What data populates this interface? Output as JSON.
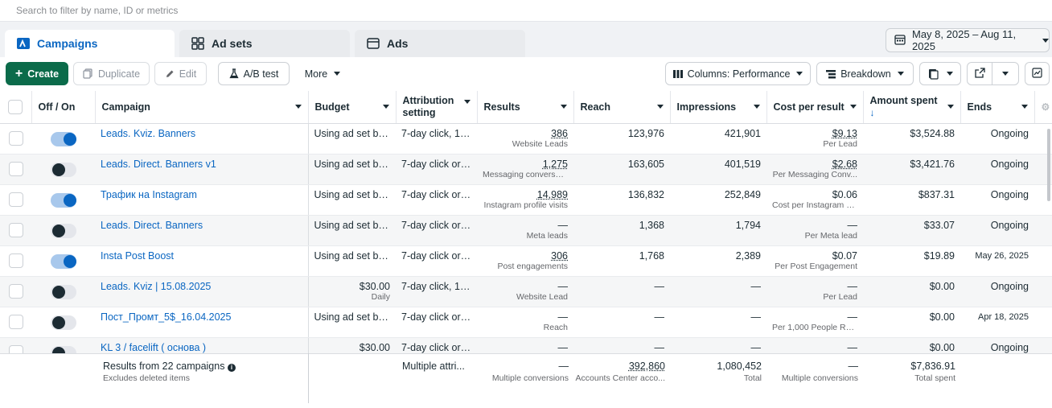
{
  "search": {
    "placeholder": "Search to filter by name, ID or metrics"
  },
  "tabs": [
    {
      "label": "Campaigns",
      "active": true
    },
    {
      "label": "Ad sets",
      "active": false
    },
    {
      "label": "Ads",
      "active": false
    }
  ],
  "date_range": "May 8, 2025 – Aug 11, 2025",
  "toolbar": {
    "create": "Create",
    "duplicate": "Duplicate",
    "edit": "Edit",
    "ab_test": "A/B test",
    "more": "More",
    "columns": "Columns: Performance",
    "breakdown": "Breakdown"
  },
  "headers": {
    "off_on": "Off / On",
    "campaign": "Campaign",
    "budget": "Budget",
    "attribution": "Attribution setting",
    "results": "Results",
    "reach": "Reach",
    "impressions": "Impressions",
    "cost_per_result": "Cost per result",
    "amount_spent": "Amount spent",
    "ends": "Ends"
  },
  "rows": [
    {
      "on": true,
      "name": "Leads. Kviz. Banners",
      "budget": "Using ad set bu...",
      "budget_sub": "",
      "attribution": "7-day click, 1-...",
      "results": "386",
      "results_sub": "Website Leads",
      "reach": "123,976",
      "impressions": "421,901",
      "cpr": "$9.13",
      "cpr_sub": "Per Lead",
      "spent": "$3,524.88",
      "ends": "Ongoing"
    },
    {
      "on": false,
      "name": "Leads. Direct. Banners v1",
      "budget": "Using ad set bu...",
      "budget_sub": "",
      "attribution": "7-day click or ...",
      "results": "1,275",
      "results_sub": "Messaging conversat...",
      "reach": "163,605",
      "impressions": "401,519",
      "cpr": "$2.68",
      "cpr_sub": "Per Messaging Conv...",
      "spent": "$3,421.76",
      "ends": "Ongoing"
    },
    {
      "on": true,
      "name": "Трафик на Instagram",
      "budget": "Using ad set bu...",
      "budget_sub": "",
      "attribution": "7-day click or ...",
      "results": "14,989",
      "results_sub": "Instagram profile visits",
      "reach": "136,832",
      "impressions": "252,849",
      "cpr": "$0.06",
      "cpr_sub": "Cost per Instagram pr...",
      "spent": "$837.31",
      "ends": "Ongoing"
    },
    {
      "on": false,
      "name": "Leads. Direct. Banners",
      "budget": "Using ad set bu...",
      "budget_sub": "",
      "attribution": "7-day click or ...",
      "results": "—",
      "results_sub": "Meta leads",
      "reach": "1,368",
      "impressions": "1,794",
      "cpr": "—",
      "cpr_sub": "Per Meta lead",
      "spent": "$33.07",
      "ends": "Ongoing"
    },
    {
      "on": true,
      "name": "Insta Post Boost",
      "budget": "Using ad set bu...",
      "budget_sub": "",
      "attribution": "7-day click or ...",
      "results": "306",
      "results_sub": "Post engagements",
      "reach": "1,768",
      "impressions": "2,389",
      "cpr": "$0.07",
      "cpr_sub": "Per Post Engagement",
      "spent": "$19.89",
      "ends": "May 26, 2025"
    },
    {
      "on": false,
      "name": "Leads. Kviz | 15.08.2025",
      "budget": "$30.00",
      "budget_sub": "Daily",
      "attribution": "7-day click, 1-...",
      "results": "—",
      "results_sub": "Website Lead",
      "reach": "—",
      "impressions": "—",
      "cpr": "—",
      "cpr_sub": "Per Lead",
      "spent": "$0.00",
      "ends": "Ongoing"
    },
    {
      "on": false,
      "name": "Пост_Промт_5$_16.04.2025",
      "budget": "Using ad set bu...",
      "budget_sub": "",
      "attribution": "7-day click or ...",
      "results": "—",
      "results_sub": "Reach",
      "reach": "—",
      "impressions": "—",
      "cpr": "—",
      "cpr_sub": "Per 1,000 People Rea...",
      "spent": "$0.00",
      "ends": "Apr 18, 2025"
    },
    {
      "on": false,
      "name": "KL 3 / facelift ( основа )",
      "budget": "$30.00",
      "budget_sub": "",
      "attribution": "7-day click or ...",
      "results": "—",
      "results_sub": "",
      "reach": "—",
      "impressions": "—",
      "cpr": "—",
      "cpr_sub": "",
      "spent": "$0.00",
      "ends": "Ongoing"
    }
  ],
  "summary": {
    "title": "Results from 22 campaigns",
    "subtitle": "Excludes deleted items",
    "attribution": "Multiple attri...",
    "results": "—",
    "results_sub": "Multiple conversions",
    "reach": "392,860",
    "reach_sub": "Accounts Center acco...",
    "impressions": "1,080,452",
    "impressions_sub": "Total",
    "cpr": "—",
    "cpr_sub": "Multiple conversions",
    "spent": "$7,836.91",
    "spent_sub": "Total spent"
  }
}
